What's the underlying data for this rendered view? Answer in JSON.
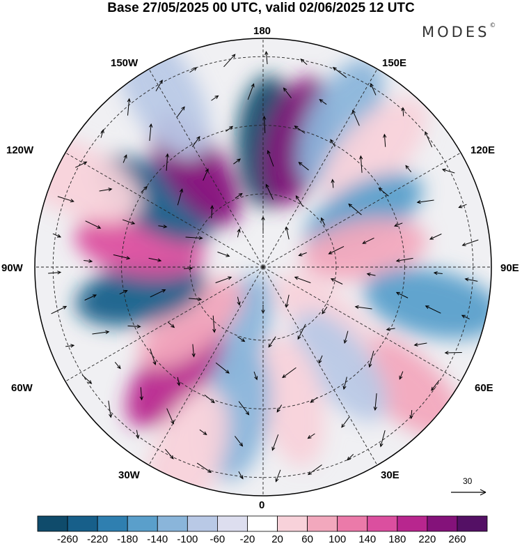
{
  "title": "Base 27/05/2025 00 UTC, valid 02/06/2025 12 UTC",
  "brand": {
    "name": "MODES",
    "mark": "©"
  },
  "projection": "north-polar-stereographic",
  "longitude_labels": {
    "n180": "180",
    "w150": "150W",
    "e150": "150E",
    "w120": "120W",
    "e120": "120E",
    "w90": "90W",
    "e90": "90E",
    "w60": "60W",
    "e60": "60E",
    "w30": "30W",
    "e30": "30E",
    "s0": "0"
  },
  "reference_vector": {
    "label": "30"
  },
  "colorbar": {
    "labels": [
      "-260",
      "-220",
      "-180",
      "-140",
      "-100",
      "-60",
      "-20",
      "20",
      "60",
      "100",
      "140",
      "180",
      "220",
      "260"
    ],
    "colors": [
      "#0f4b6b",
      "#175f8a",
      "#2f7fb0",
      "#5a9fcb",
      "#8ab5da",
      "#b9c9e6",
      "#dddeef",
      "#ffffff",
      "#f8d2da",
      "#f2a8bd",
      "#eb7aa9",
      "#db4f9f",
      "#b8268e",
      "#84127a",
      "#541065"
    ]
  },
  "anomaly_cells": [
    {
      "lon": 178,
      "r": 0.55,
      "value": -260
    },
    {
      "lon": 165,
      "r": 0.57,
      "value": 240
    },
    {
      "lon": 152,
      "r": 0.72,
      "value": -100
    },
    {
      "lon": 136,
      "r": 0.7,
      "value": 60
    },
    {
      "lon": 118,
      "r": 0.5,
      "value": -150
    },
    {
      "lon": 100,
      "r": 0.45,
      "value": 80
    },
    {
      "lon": 78,
      "r": 0.76,
      "value": -140
    },
    {
      "lon": 50,
      "r": 0.8,
      "value": 100
    },
    {
      "lon": 50,
      "r": 0.35,
      "value": 60
    },
    {
      "lon": 38,
      "r": 0.55,
      "value": -60
    },
    {
      "lon": 12,
      "r": 0.6,
      "value": 60
    },
    {
      "lon": -10,
      "r": 0.65,
      "value": -100
    },
    {
      "lon": -20,
      "r": 0.3,
      "value": -100
    },
    {
      "lon": -40,
      "r": 0.6,
      "value": 220
    },
    {
      "lon": -52,
      "r": 0.4,
      "value": 100
    },
    {
      "lon": -22,
      "r": 0.9,
      "value": 60
    },
    {
      "lon": -78,
      "r": 0.55,
      "value": -240
    },
    {
      "lon": -100,
      "r": 0.55,
      "value": 180
    },
    {
      "lon": -122,
      "r": 0.56,
      "value": -220
    },
    {
      "lon": -145,
      "r": 0.52,
      "value": 240
    },
    {
      "lon": -150,
      "r": 0.88,
      "value": -60
    },
    {
      "lon": -115,
      "r": 0.92,
      "value": 60
    }
  ]
}
